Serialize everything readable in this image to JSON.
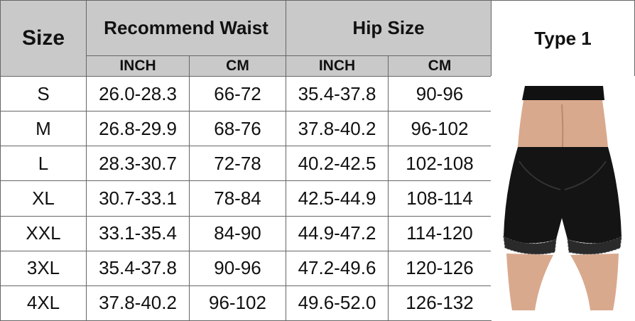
{
  "header": {
    "size": "Size",
    "recommend_waist": "Recommend Waist",
    "hip_size": "Hip Size",
    "type": "Type 1"
  },
  "subheaders": [
    "INCH",
    "CM",
    "INCH",
    "CM"
  ],
  "rows": [
    [
      "S",
      "26.0-28.3",
      "66-72",
      "35.4-37.8",
      "90-96"
    ],
    [
      "M",
      "26.8-29.9",
      "68-76",
      "37.8-40.2",
      "96-102"
    ],
    [
      "L",
      "28.3-30.7",
      "72-78",
      "40.2-42.5",
      "102-108"
    ],
    [
      "XL",
      "30.7-33.1",
      "78-84",
      "42.5-44.9",
      "108-114"
    ],
    [
      "XXL",
      "33.1-35.4",
      "84-90",
      "44.9-47.2",
      "114-120"
    ],
    [
      "3XL",
      "35.4-37.8",
      "90-96",
      "47.2-49.6",
      "120-126"
    ],
    [
      "4XL",
      "37.8-40.2",
      "96-102",
      "49.6-52.0",
      "126-132"
    ]
  ]
}
